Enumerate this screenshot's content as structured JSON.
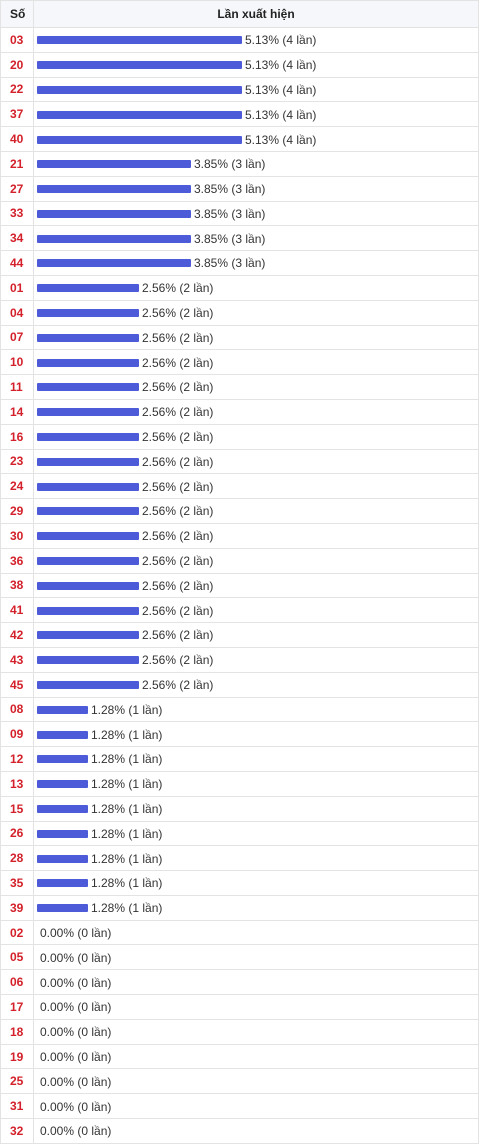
{
  "header": {
    "col_number": "Số",
    "col_frequency": "Lần xuất hiện"
  },
  "bar_color": "#4e5bd8",
  "chart_data": {
    "type": "bar",
    "orientation": "horizontal",
    "xlabel": "Lần xuất hiện",
    "ylabel": "Số",
    "xlim": [
      0,
      5.13
    ],
    "rows": [
      {
        "number": "03",
        "percent": 5.13,
        "label": "5.13% (4 lần)"
      },
      {
        "number": "20",
        "percent": 5.13,
        "label": "5.13% (4 lần)"
      },
      {
        "number": "22",
        "percent": 5.13,
        "label": "5.13% (4 lần)"
      },
      {
        "number": "37",
        "percent": 5.13,
        "label": "5.13% (4 lần)"
      },
      {
        "number": "40",
        "percent": 5.13,
        "label": "5.13% (4 lần)"
      },
      {
        "number": "21",
        "percent": 3.85,
        "label": "3.85% (3 lần)"
      },
      {
        "number": "27",
        "percent": 3.85,
        "label": "3.85% (3 lần)"
      },
      {
        "number": "33",
        "percent": 3.85,
        "label": "3.85% (3 lần)"
      },
      {
        "number": "34",
        "percent": 3.85,
        "label": "3.85% (3 lần)"
      },
      {
        "number": "44",
        "percent": 3.85,
        "label": "3.85% (3 lần)"
      },
      {
        "number": "01",
        "percent": 2.56,
        "label": "2.56% (2 lần)"
      },
      {
        "number": "04",
        "percent": 2.56,
        "label": "2.56% (2 lần)"
      },
      {
        "number": "07",
        "percent": 2.56,
        "label": "2.56% (2 lần)"
      },
      {
        "number": "10",
        "percent": 2.56,
        "label": "2.56% (2 lần)"
      },
      {
        "number": "11",
        "percent": 2.56,
        "label": "2.56% (2 lần)"
      },
      {
        "number": "14",
        "percent": 2.56,
        "label": "2.56% (2 lần)"
      },
      {
        "number": "16",
        "percent": 2.56,
        "label": "2.56% (2 lần)"
      },
      {
        "number": "23",
        "percent": 2.56,
        "label": "2.56% (2 lần)"
      },
      {
        "number": "24",
        "percent": 2.56,
        "label": "2.56% (2 lần)"
      },
      {
        "number": "29",
        "percent": 2.56,
        "label": "2.56% (2 lần)"
      },
      {
        "number": "30",
        "percent": 2.56,
        "label": "2.56% (2 lần)"
      },
      {
        "number": "36",
        "percent": 2.56,
        "label": "2.56% (2 lần)"
      },
      {
        "number": "38",
        "percent": 2.56,
        "label": "2.56% (2 lần)"
      },
      {
        "number": "41",
        "percent": 2.56,
        "label": "2.56% (2 lần)"
      },
      {
        "number": "42",
        "percent": 2.56,
        "label": "2.56% (2 lần)"
      },
      {
        "number": "43",
        "percent": 2.56,
        "label": "2.56% (2 lần)"
      },
      {
        "number": "45",
        "percent": 2.56,
        "label": "2.56% (2 lần)"
      },
      {
        "number": "08",
        "percent": 1.28,
        "label": "1.28% (1 lần)"
      },
      {
        "number": "09",
        "percent": 1.28,
        "label": "1.28% (1 lần)"
      },
      {
        "number": "12",
        "percent": 1.28,
        "label": "1.28% (1 lần)"
      },
      {
        "number": "13",
        "percent": 1.28,
        "label": "1.28% (1 lần)"
      },
      {
        "number": "15",
        "percent": 1.28,
        "label": "1.28% (1 lần)"
      },
      {
        "number": "26",
        "percent": 1.28,
        "label": "1.28% (1 lần)"
      },
      {
        "number": "28",
        "percent": 1.28,
        "label": "1.28% (1 lần)"
      },
      {
        "number": "35",
        "percent": 1.28,
        "label": "1.28% (1 lần)"
      },
      {
        "number": "39",
        "percent": 1.28,
        "label": "1.28% (1 lần)"
      },
      {
        "number": "02",
        "percent": 0,
        "label": "0.00% (0 lần)"
      },
      {
        "number": "05",
        "percent": 0,
        "label": "0.00% (0 lần)"
      },
      {
        "number": "06",
        "percent": 0,
        "label": "0.00% (0 lần)"
      },
      {
        "number": "17",
        "percent": 0,
        "label": "0.00% (0 lần)"
      },
      {
        "number": "18",
        "percent": 0,
        "label": "0.00% (0 lần)"
      },
      {
        "number": "19",
        "percent": 0,
        "label": "0.00% (0 lần)"
      },
      {
        "number": "25",
        "percent": 0,
        "label": "0.00% (0 lần)"
      },
      {
        "number": "31",
        "percent": 0,
        "label": "0.00% (0 lần)"
      },
      {
        "number": "32",
        "percent": 0,
        "label": "0.00% (0 lần)"
      }
    ]
  }
}
